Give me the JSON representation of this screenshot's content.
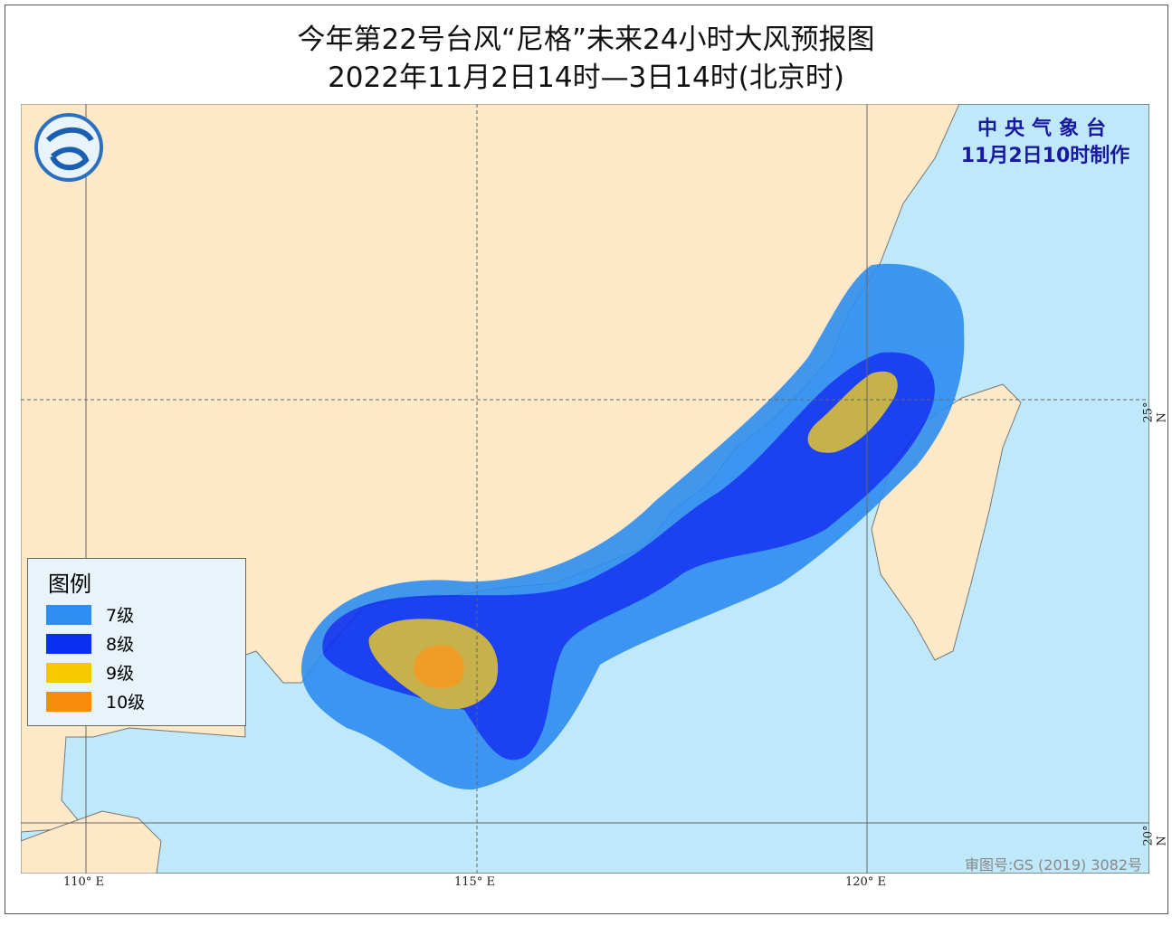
{
  "title": "今年第22号台风“尼格”未来24小时大风预报图",
  "subtitle": "2022年11月2日14时—3日14时(北京时)",
  "agency": {
    "name": "中央气象台",
    "issued": "11月2日10时制作"
  },
  "approval": "审图号:GS (2019) 3082号",
  "axes": {
    "lon_ticks": [
      "110° E",
      "115° E",
      "120° E"
    ],
    "lat_ticks": [
      "25° N",
      "20° N"
    ]
  },
  "legend": {
    "title": "图例",
    "items": [
      {
        "label": "7级",
        "color": "#2e8ef0"
      },
      {
        "label": "8级",
        "color": "#0a2ff0"
      },
      {
        "label": "9级",
        "color": "#f5c800"
      },
      {
        "label": "10级",
        "color": "#f58c0a"
      }
    ]
  },
  "colors": {
    "land": "#fde9c8",
    "sea": "#bfe8fb",
    "border": "#888888"
  }
}
